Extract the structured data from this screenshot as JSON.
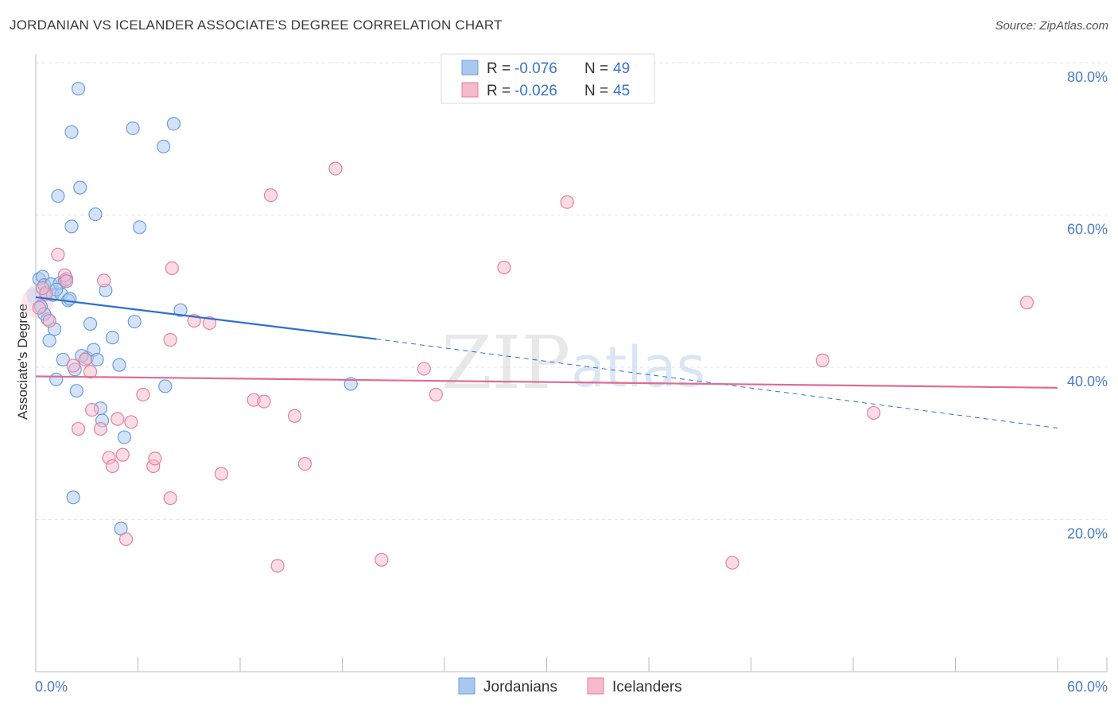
{
  "header": {
    "title": "JORDANIAN VS ICELANDER ASSOCIATE'S DEGREE CORRELATION CHART",
    "source": "Source: ZipAtlas.com"
  },
  "watermark": {
    "zip": "ZIP",
    "atlas": "atlas"
  },
  "legend": {
    "r_label": "R =",
    "n_label": "N =",
    "rows": [
      {
        "name": "Jordanians",
        "r": "-0.076",
        "n": "49",
        "color": "#a9c8f0",
        "stroke": "#6b9fdc"
      },
      {
        "name": "Icelanders",
        "r": "-0.026",
        "n": "45",
        "color": "#f7b9cc",
        "stroke": "#e57fa0"
      }
    ]
  },
  "chart_data": {
    "type": "scatter",
    "title": "JORDANIAN VS ICELANDER ASSOCIATE'S DEGREE CORRELATION CHART",
    "xlabel": "",
    "ylabel": "Associate's Degree",
    "xlim": [
      0,
      60
    ],
    "ylim": [
      0,
      80
    ],
    "x_tick_labels": [
      "0.0%",
      "60.0%"
    ],
    "y_ticks": [
      20,
      40,
      60,
      80
    ],
    "y_tick_labels": [
      "20.0%",
      "40.0%",
      "60.0%",
      "80.0%"
    ],
    "grid": true,
    "series": [
      {
        "name": "Jordanians",
        "color": "#a9c8f0",
        "stroke": "#6b9fdc",
        "trend": {
          "x0": 0,
          "y0": 49.2,
          "x1": 20,
          "y1": 43.7,
          "x_end": 60,
          "y_end": 32.0,
          "color": "#2e6fd1"
        },
        "points": [
          [
            0.2,
            51.6
          ],
          [
            0.4,
            51.9
          ],
          [
            0.5,
            50.8
          ],
          [
            0.6,
            49.8
          ],
          [
            0.7,
            46.3
          ],
          [
            0.8,
            43.5
          ],
          [
            0.9,
            50.9
          ],
          [
            1.0,
            49.5
          ],
          [
            1.1,
            45.0
          ],
          [
            1.2,
            38.4
          ],
          [
            1.3,
            62.5
          ],
          [
            1.4,
            51.0
          ],
          [
            1.5,
            49.6
          ],
          [
            1.6,
            41.0
          ],
          [
            1.7,
            51.4
          ],
          [
            1.8,
            51.6
          ],
          [
            1.9,
            48.8
          ],
          [
            2.0,
            49.0
          ],
          [
            2.1,
            58.5
          ],
          [
            2.1,
            70.9
          ],
          [
            2.2,
            22.9
          ],
          [
            2.3,
            39.7
          ],
          [
            2.4,
            36.9
          ],
          [
            2.5,
            76.6
          ],
          [
            2.6,
            63.6
          ],
          [
            3.0,
            41.2
          ],
          [
            3.2,
            45.7
          ],
          [
            3.4,
            42.3
          ],
          [
            3.5,
            60.1
          ],
          [
            3.6,
            41.0
          ],
          [
            3.8,
            34.6
          ],
          [
            3.9,
            33.0
          ],
          [
            4.1,
            50.1
          ],
          [
            4.5,
            43.9
          ],
          [
            4.9,
            40.3
          ],
          [
            5.2,
            30.8
          ],
          [
            5.0,
            18.8
          ],
          [
            5.7,
            71.4
          ],
          [
            5.8,
            46.0
          ],
          [
            6.1,
            58.4
          ],
          [
            7.5,
            69.0
          ],
          [
            7.6,
            37.5
          ],
          [
            8.1,
            72.0
          ],
          [
            8.5,
            47.5
          ],
          [
            18.5,
            37.8
          ],
          [
            0.3,
            48.0
          ],
          [
            0.5,
            47.0
          ],
          [
            1.2,
            50.2
          ],
          [
            2.7,
            41.5
          ]
        ]
      },
      {
        "name": "Icelanders",
        "color": "#f7b9cc",
        "stroke": "#e57fa0",
        "trend": {
          "x0": 0,
          "y0": 38.8,
          "x1": 60,
          "y1": 37.3,
          "color": "#e06b95"
        },
        "points": [
          [
            0.2,
            47.8
          ],
          [
            0.6,
            49.6
          ],
          [
            0.8,
            46.1
          ],
          [
            1.3,
            54.8
          ],
          [
            1.7,
            52.1
          ],
          [
            1.8,
            51.3
          ],
          [
            2.2,
            40.2
          ],
          [
            2.5,
            31.9
          ],
          [
            2.9,
            41.0
          ],
          [
            3.2,
            39.4
          ],
          [
            3.3,
            34.4
          ],
          [
            3.8,
            31.9
          ],
          [
            4.0,
            51.4
          ],
          [
            4.3,
            28.1
          ],
          [
            4.5,
            27.0
          ],
          [
            4.8,
            33.2
          ],
          [
            5.1,
            28.5
          ],
          [
            5.3,
            17.4
          ],
          [
            5.6,
            32.8
          ],
          [
            6.3,
            36.4
          ],
          [
            6.9,
            27.0
          ],
          [
            7.0,
            28.0
          ],
          [
            7.9,
            22.8
          ],
          [
            7.9,
            43.6
          ],
          [
            8.0,
            53.0
          ],
          [
            9.3,
            46.1
          ],
          [
            10.2,
            45.8
          ],
          [
            10.9,
            26.0
          ],
          [
            12.8,
            35.7
          ],
          [
            13.4,
            35.5
          ],
          [
            13.8,
            62.6
          ],
          [
            14.2,
            13.9
          ],
          [
            15.2,
            33.6
          ],
          [
            15.8,
            27.3
          ],
          [
            17.6,
            66.1
          ],
          [
            20.3,
            14.7
          ],
          [
            22.8,
            39.8
          ],
          [
            23.5,
            36.4
          ],
          [
            27.5,
            53.1
          ],
          [
            31.2,
            61.7
          ],
          [
            40.9,
            14.3
          ],
          [
            46.2,
            40.9
          ],
          [
            49.2,
            34.0
          ],
          [
            58.2,
            48.5
          ],
          [
            0.4,
            50.4
          ]
        ]
      }
    ]
  }
}
